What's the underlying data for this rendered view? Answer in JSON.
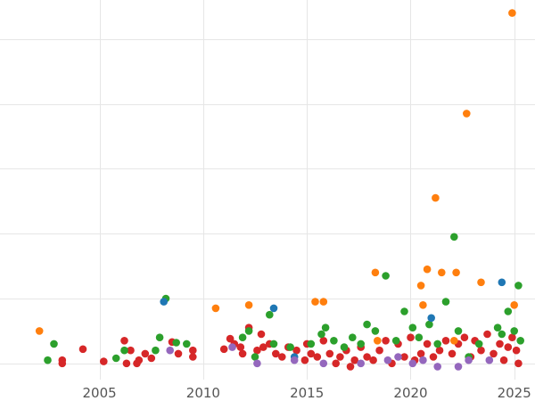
{
  "chart_data": {
    "type": "scatter",
    "title": "",
    "xlabel": "",
    "ylabel": "",
    "xlim": [
      2000.2,
      2026.0
    ],
    "ylim": [
      -0.25,
      5.6
    ],
    "grid": true,
    "legend": "none",
    "xticks": [
      2005,
      2010,
      2015,
      2020,
      2025
    ],
    "xtick_labels": [
      "2005",
      "2010",
      "2015",
      "2020",
      "2025"
    ],
    "yticks": [
      0,
      1,
      2,
      3,
      4,
      5
    ],
    "colors": {
      "red": "#d62728",
      "green": "#2ca02c",
      "orange": "#ff7f0e",
      "blue": "#1f77b4",
      "purple": "#9467bd"
    },
    "series": [
      {
        "color": "red",
        "points": [
          [
            2003.2,
            0.05
          ],
          [
            2003.2,
            0.0
          ],
          [
            2004.2,
            0.22
          ],
          [
            2005.2,
            0.03
          ],
          [
            2006.2,
            0.35
          ],
          [
            2006.3,
            0.0
          ],
          [
            2006.5,
            0.2
          ],
          [
            2006.8,
            0.0
          ],
          [
            2006.9,
            0.05
          ],
          [
            2007.2,
            0.15
          ],
          [
            2007.5,
            0.08
          ],
          [
            2008.5,
            0.33
          ],
          [
            2008.8,
            0.15
          ],
          [
            2009.5,
            0.1
          ],
          [
            2009.5,
            0.2
          ],
          [
            2011.0,
            0.22
          ],
          [
            2011.3,
            0.38
          ],
          [
            2011.5,
            0.3
          ],
          [
            2011.8,
            0.25
          ],
          [
            2011.9,
            0.15
          ],
          [
            2012.2,
            0.55
          ],
          [
            2012.6,
            0.2
          ],
          [
            2012.8,
            0.45
          ],
          [
            2012.9,
            0.25
          ],
          [
            2013.2,
            0.3
          ],
          [
            2013.5,
            0.15
          ],
          [
            2013.8,
            0.1
          ],
          [
            2014.1,
            0.25
          ],
          [
            2014.5,
            0.2
          ],
          [
            2014.9,
            0.05
          ],
          [
            2015.0,
            0.3
          ],
          [
            2015.2,
            0.15
          ],
          [
            2015.5,
            0.1
          ],
          [
            2015.8,
            0.35
          ],
          [
            2016.1,
            0.15
          ],
          [
            2016.4,
            0.0
          ],
          [
            2016.6,
            0.1
          ],
          [
            2016.9,
            0.2
          ],
          [
            2017.1,
            -0.05
          ],
          [
            2017.3,
            0.05
          ],
          [
            2017.6,
            0.25
          ],
          [
            2017.9,
            0.1
          ],
          [
            2018.2,
            0.05
          ],
          [
            2018.5,
            0.2
          ],
          [
            2018.8,
            0.35
          ],
          [
            2019.1,
            0.0
          ],
          [
            2019.4,
            0.3
          ],
          [
            2019.7,
            0.1
          ],
          [
            2020.0,
            0.4
          ],
          [
            2020.2,
            0.05
          ],
          [
            2020.5,
            0.15
          ],
          [
            2020.8,
            0.3
          ],
          [
            2021.1,
            0.1
          ],
          [
            2021.4,
            0.2
          ],
          [
            2021.7,
            0.35
          ],
          [
            2022.0,
            0.15
          ],
          [
            2022.3,
            0.3
          ],
          [
            2022.6,
            0.4
          ],
          [
            2022.9,
            0.1
          ],
          [
            2023.1,
            0.35
          ],
          [
            2023.4,
            0.2
          ],
          [
            2023.7,
            0.45
          ],
          [
            2024.0,
            0.15
          ],
          [
            2024.3,
            0.3
          ],
          [
            2024.5,
            0.05
          ],
          [
            2024.7,
            0.25
          ],
          [
            2024.9,
            0.4
          ],
          [
            2025.1,
            0.2
          ],
          [
            2025.2,
            0.0
          ]
        ]
      },
      {
        "color": "green",
        "points": [
          [
            2002.5,
            0.05
          ],
          [
            2002.8,
            0.3
          ],
          [
            2005.8,
            0.08
          ],
          [
            2006.2,
            0.2
          ],
          [
            2007.7,
            0.2
          ],
          [
            2007.9,
            0.4
          ],
          [
            2008.2,
            1.0
          ],
          [
            2008.7,
            0.32
          ],
          [
            2009.2,
            0.3
          ],
          [
            2011.9,
            0.4
          ],
          [
            2012.2,
            0.5
          ],
          [
            2012.5,
            0.1
          ],
          [
            2013.2,
            0.75
          ],
          [
            2013.4,
            0.3
          ],
          [
            2014.2,
            0.25
          ],
          [
            2015.2,
            0.3
          ],
          [
            2015.7,
            0.45
          ],
          [
            2015.9,
            0.55
          ],
          [
            2016.3,
            0.35
          ],
          [
            2016.8,
            0.25
          ],
          [
            2017.2,
            0.4
          ],
          [
            2017.6,
            0.3
          ],
          [
            2017.9,
            0.6
          ],
          [
            2018.3,
            0.5
          ],
          [
            2018.8,
            1.35
          ],
          [
            2019.3,
            0.35
          ],
          [
            2019.7,
            0.8
          ],
          [
            2020.1,
            0.55
          ],
          [
            2020.4,
            0.4
          ],
          [
            2020.9,
            0.6
          ],
          [
            2021.3,
            0.3
          ],
          [
            2021.7,
            0.95
          ],
          [
            2022.1,
            1.95
          ],
          [
            2022.3,
            0.5
          ],
          [
            2022.8,
            0.1
          ],
          [
            2023.3,
            0.3
          ],
          [
            2024.2,
            0.55
          ],
          [
            2024.4,
            0.45
          ],
          [
            2024.7,
            0.8
          ],
          [
            2025.0,
            0.5
          ],
          [
            2025.2,
            1.2
          ],
          [
            2025.3,
            0.35
          ]
        ]
      },
      {
        "color": "orange",
        "points": [
          [
            2002.1,
            0.5
          ],
          [
            2010.6,
            0.85
          ],
          [
            2012.2,
            0.9
          ],
          [
            2015.4,
            0.95
          ],
          [
            2015.8,
            0.95
          ],
          [
            2018.3,
            1.4
          ],
          [
            2020.5,
            1.2
          ],
          [
            2020.8,
            1.45
          ],
          [
            2021.2,
            2.55
          ],
          [
            2021.5,
            1.4
          ],
          [
            2022.2,
            1.4
          ],
          [
            2022.7,
            3.85
          ],
          [
            2023.4,
            1.25
          ],
          [
            2024.9,
            5.4
          ],
          [
            2025.0,
            0.9
          ],
          [
            2020.6,
            0.9
          ],
          [
            2018.4,
            0.35
          ],
          [
            2022.1,
            0.35
          ]
        ]
      },
      {
        "color": "blue",
        "points": [
          [
            2008.1,
            0.95
          ],
          [
            2013.4,
            0.85
          ],
          [
            2024.4,
            1.25
          ],
          [
            2014.4,
            0.1
          ],
          [
            2021.0,
            0.7
          ]
        ]
      },
      {
        "color": "purple",
        "points": [
          [
            2008.4,
            0.2
          ],
          [
            2011.4,
            0.25
          ],
          [
            2012.6,
            0.0
          ],
          [
            2014.4,
            0.05
          ],
          [
            2015.8,
            0.0
          ],
          [
            2017.6,
            0.0
          ],
          [
            2018.9,
            0.05
          ],
          [
            2019.4,
            0.1
          ],
          [
            2020.1,
            0.0
          ],
          [
            2020.6,
            0.05
          ],
          [
            2021.3,
            -0.05
          ],
          [
            2022.3,
            -0.05
          ],
          [
            2022.8,
            0.05
          ],
          [
            2023.8,
            0.05
          ]
        ]
      }
    ]
  }
}
